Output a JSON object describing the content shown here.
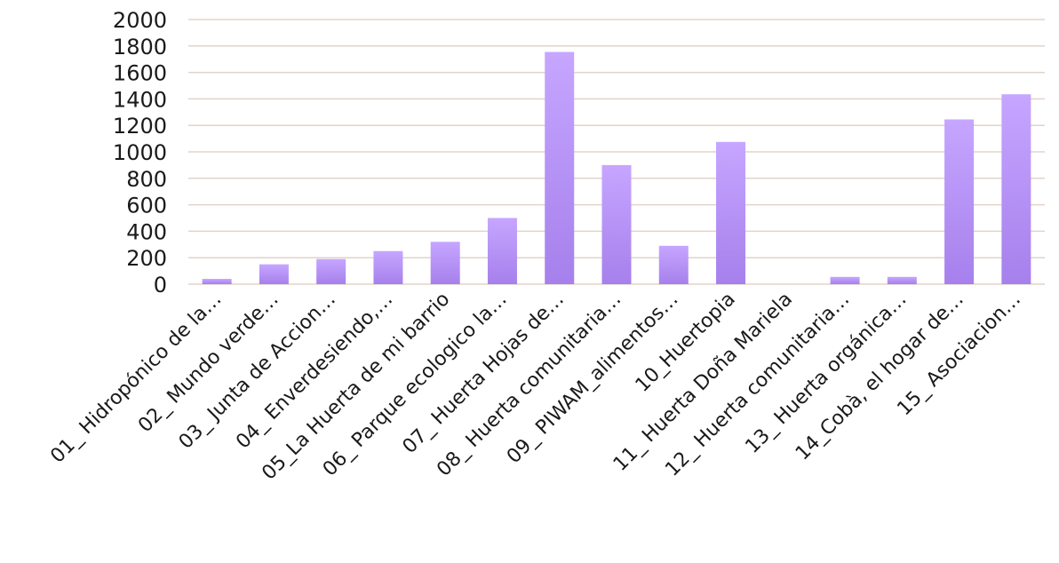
{
  "chart_data": {
    "type": "bar",
    "categories": [
      "01_ Hidropónico de la…",
      "02_ Mundo verde…",
      "03_ Junta de Accion…",
      "04_ Enverdesiendo,…",
      "05_La Huerta de mi barrio",
      "06_ Parque ecologico la…",
      "07_ Huerta Hojas de…",
      "08_ Huerta comunitaria…",
      "09_ PIWAM_alimentos…",
      "10_Huertopia",
      "11_ Huerta Doña Mariela",
      "12_ Huerta comunitaria…",
      "13_ Huerta orgánica…",
      "14_Cobà, el hogar de…",
      "15_ Asociacion…"
    ],
    "values": [
      40,
      150,
      190,
      250,
      320,
      500,
      1755,
      900,
      290,
      1075,
      0,
      55,
      55,
      1245,
      1435
    ],
    "yticks": [
      0,
      200,
      400,
      600,
      800,
      1000,
      1200,
      1400,
      1600,
      1800,
      2000
    ],
    "ylim": [
      0,
      2000
    ],
    "grid": true,
    "colors": {
      "bar_top": "#c6a6ff",
      "bar_bottom": "#a680ec",
      "grid": "#e3d3c8",
      "text": "#1a1a1a"
    }
  }
}
